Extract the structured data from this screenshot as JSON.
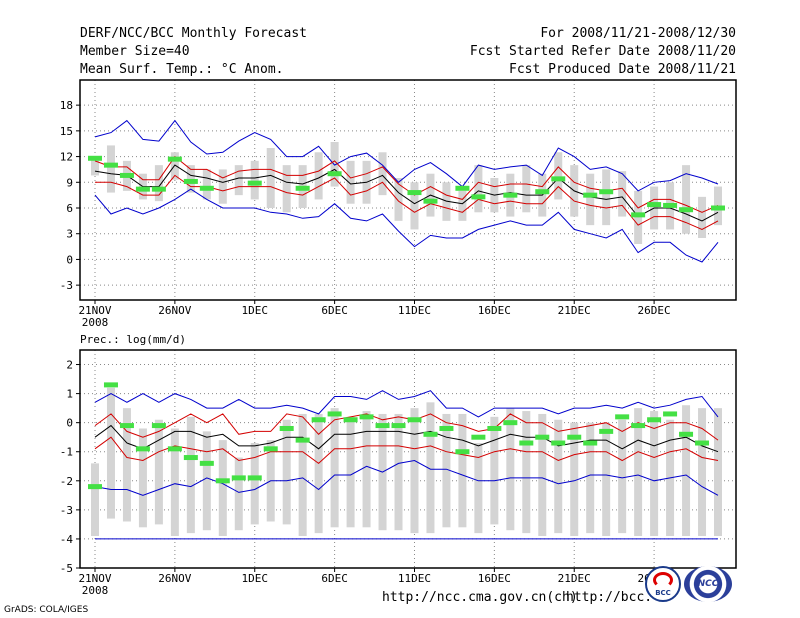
{
  "header": {
    "title": "DERF/NCC/BCC Monthly Forecast",
    "member_size": "Member Size=40",
    "variable": "Mean Surf. Temp.: °C Anom.",
    "period": "For 2008/11/21-2008/12/30",
    "started": "Fcst Started Refer Date 2008/11/20",
    "produced": "Fcst Produced Date 2008/11/21"
  },
  "footer": {
    "url1": "http://ncc.cma.gov.cn(ch)",
    "url2": "http://bcc.",
    "credit": "GrADS: COLA/IGES",
    "logo1": "BCC",
    "logo2": "NCC"
  },
  "colors": {
    "envelope": "#0000cc",
    "spread": "#d40000",
    "mean": "#000000",
    "box": "#d4d4d4",
    "obs": "#44e044",
    "dashed": "#0000cc"
  },
  "chart_data": [
    {
      "type": "line",
      "title": "Mean Surf. Temp.: °C Anom.",
      "ylim": [
        -4.5,
        20
      ],
      "yticks": [
        -3,
        0,
        3,
        6,
        9,
        12,
        15,
        18
      ],
      "x_tick_labels": [
        "21NOV",
        "26NOV",
        "1DEC",
        "6DEC",
        "11DEC",
        "16DEC",
        "21DEC",
        "26DEC"
      ],
      "x_sub_label": "2008",
      "x_tick_positions": [
        0,
        5,
        10,
        15,
        20,
        25,
        30,
        35
      ],
      "grid": true,
      "series": [
        {
          "name": "max",
          "values": [
            14.3,
            14.8,
            16.2,
            14.0,
            13.8,
            16.2,
            13.7,
            12.3,
            12.5,
            13.8,
            14.8,
            14.0,
            12.0,
            12.0,
            13.2,
            11.0,
            12.0,
            12.4,
            11.0,
            9.0,
            10.5,
            11.3,
            10.0,
            8.5,
            11.0,
            10.5,
            10.8,
            11.0,
            9.8,
            13.0,
            12.0,
            10.5,
            10.8,
            10.0,
            8.0,
            9.0,
            9.2,
            10.0,
            9.5,
            8.8
          ]
        },
        {
          "name": "upper",
          "values": [
            11.5,
            10.8,
            10.8,
            9.3,
            9.3,
            12.0,
            10.5,
            10.5,
            9.5,
            10.3,
            10.5,
            10.5,
            9.8,
            9.8,
            10.3,
            11.5,
            9.5,
            10.0,
            10.8,
            8.8,
            7.5,
            8.5,
            7.5,
            7.0,
            9.0,
            8.5,
            8.8,
            8.8,
            8.5,
            10.8,
            9.0,
            8.3,
            8.0,
            8.3,
            6.0,
            7.0,
            7.0,
            6.3,
            5.5,
            6.3
          ]
        },
        {
          "name": "mean",
          "values": [
            10.3,
            10.0,
            9.8,
            8.5,
            8.5,
            11.0,
            9.8,
            9.5,
            9.0,
            9.5,
            9.5,
            9.8,
            9.0,
            8.8,
            9.5,
            10.5,
            8.8,
            9.0,
            9.8,
            7.8,
            6.5,
            7.5,
            6.8,
            6.5,
            8.0,
            7.5,
            7.8,
            7.5,
            7.5,
            9.5,
            8.0,
            7.3,
            7.0,
            7.3,
            5.0,
            6.0,
            6.0,
            5.3,
            4.5,
            5.5
          ]
        },
        {
          "name": "lower",
          "values": [
            9.0,
            9.0,
            8.5,
            7.5,
            7.5,
            9.8,
            8.5,
            8.5,
            8.0,
            8.5,
            8.5,
            8.5,
            7.8,
            7.5,
            8.5,
            9.5,
            7.5,
            8.0,
            9.0,
            6.8,
            5.5,
            6.5,
            6.0,
            5.5,
            7.0,
            6.5,
            6.8,
            6.5,
            6.5,
            8.5,
            6.8,
            6.3,
            6.0,
            6.3,
            4.0,
            5.0,
            5.0,
            4.3,
            3.5,
            4.5
          ]
        },
        {
          "name": "min",
          "values": [
            7.5,
            5.3,
            6.0,
            5.3,
            6.0,
            7.0,
            8.2,
            7.0,
            6.0,
            6.0,
            6.0,
            5.5,
            5.3,
            4.8,
            5.0,
            6.5,
            4.8,
            4.5,
            5.3,
            3.3,
            1.5,
            2.8,
            2.5,
            2.5,
            3.5,
            4.0,
            4.5,
            4.0,
            4.0,
            5.5,
            3.5,
            3.0,
            2.5,
            3.5,
            0.8,
            2.0,
            2.0,
            0.5,
            -0.3,
            2.0
          ]
        },
        {
          "name": "box_top",
          "values": [
            12.0,
            13.3,
            11.5,
            10.0,
            11.0,
            12.5,
            11.0,
            10.5,
            10.5,
            11.0,
            11.5,
            13.0,
            11.0,
            11.0,
            12.5,
            13.7,
            11.5,
            11.5,
            12.5,
            9.5,
            9.0,
            10.0,
            9.0,
            8.0,
            11.0,
            9.5,
            10.0,
            11.0,
            10.0,
            12.5,
            11.0,
            10.0,
            10.5,
            10.3,
            8.0,
            8.5,
            9.0,
            11.0,
            7.3,
            8.5
          ]
        },
        {
          "name": "box_bottom",
          "values": [
            9.8,
            7.8,
            8.0,
            7.0,
            6.8,
            9.3,
            7.8,
            7.0,
            6.5,
            7.5,
            7.0,
            6.0,
            5.5,
            6.0,
            7.0,
            8.5,
            6.5,
            6.5,
            7.5,
            4.5,
            3.5,
            5.0,
            4.5,
            4.5,
            5.5,
            5.5,
            5.0,
            5.5,
            5.0,
            7.0,
            5.0,
            4.0,
            4.0,
            5.0,
            1.8,
            3.5,
            3.5,
            3.0,
            2.5,
            4.0
          ]
        },
        {
          "name": "observed",
          "values": [
            11.8,
            11.0,
            9.8,
            8.2,
            8.2,
            11.7,
            9.1,
            8.3,
            null,
            null,
            8.9,
            null,
            null,
            8.3,
            null,
            10.0,
            null,
            null,
            null,
            null,
            7.8,
            6.8,
            null,
            8.3,
            7.3,
            null,
            7.5,
            null,
            7.9,
            9.4,
            null,
            7.5,
            7.9,
            null,
            5.2,
            6.4,
            6.3,
            5.8,
            null,
            6.0
          ]
        }
      ]
    },
    {
      "type": "line",
      "title": "Prec.: log(mm/d)",
      "ylim": [
        -5,
        2.5
      ],
      "yticks": [
        -5,
        -4,
        -3,
        -2,
        -1,
        0,
        1,
        2
      ],
      "x_tick_labels": [
        "21NOV",
        "26NOV",
        "1DEC",
        "6DEC",
        "11DEC",
        "16DEC",
        "21DEC",
        "26DEC"
      ],
      "x_sub_label": "2008",
      "x_tick_positions": [
        0,
        5,
        10,
        15,
        20,
        25,
        30,
        35
      ],
      "grid": true,
      "reference_line": -4,
      "series": [
        {
          "name": "max",
          "values": [
            0.7,
            1.0,
            0.7,
            1.0,
            0.7,
            1.0,
            0.8,
            0.5,
            0.5,
            0.8,
            0.5,
            0.5,
            0.6,
            0.5,
            0.3,
            0.9,
            0.9,
            0.8,
            1.1,
            0.8,
            0.9,
            1.1,
            0.5,
            0.5,
            0.2,
            0.5,
            0.5,
            0.5,
            0.5,
            0.3,
            0.5,
            0.5,
            0.6,
            0.5,
            0.7,
            0.5,
            0.6,
            0.8,
            0.9,
            0.2
          ]
        },
        {
          "name": "upper",
          "values": [
            -0.1,
            0.3,
            -0.3,
            -0.5,
            -0.3,
            0.0,
            0.3,
            0.0,
            0.3,
            -0.4,
            -0.3,
            -0.3,
            0.3,
            0.2,
            -0.4,
            0.1,
            0.2,
            0.3,
            0.1,
            0.2,
            0.1,
            0.3,
            0.0,
            -0.1,
            -0.3,
            -0.2,
            0.3,
            0.0,
            0.0,
            -0.3,
            -0.2,
            -0.1,
            0.0,
            -0.3,
            0.0,
            -0.2,
            0.0,
            0.0,
            -0.2,
            -0.6
          ]
        },
        {
          "name": "mean",
          "values": [
            -0.5,
            -0.1,
            -0.7,
            -0.9,
            -0.6,
            -0.3,
            -0.3,
            -0.5,
            -0.4,
            -0.8,
            -0.8,
            -0.7,
            -0.5,
            -0.5,
            -0.9,
            -0.4,
            -0.4,
            -0.3,
            -0.3,
            -0.3,
            -0.4,
            -0.3,
            -0.5,
            -0.6,
            -0.8,
            -0.6,
            -0.4,
            -0.5,
            -0.5,
            -0.8,
            -0.7,
            -0.6,
            -0.6,
            -0.9,
            -0.6,
            -0.8,
            -0.6,
            -0.5,
            -0.8,
            -1.0
          ]
        },
        {
          "name": "lower",
          "values": [
            -0.9,
            -0.5,
            -1.2,
            -1.3,
            -1.0,
            -0.8,
            -0.9,
            -1.0,
            -0.9,
            -1.3,
            -1.2,
            -1.0,
            -1.0,
            -1.0,
            -1.4,
            -0.9,
            -0.9,
            -0.8,
            -0.8,
            -0.8,
            -0.9,
            -0.8,
            -1.0,
            -1.1,
            -1.2,
            -1.0,
            -0.9,
            -1.0,
            -1.0,
            -1.3,
            -1.1,
            -1.0,
            -1.0,
            -1.3,
            -1.0,
            -1.2,
            -1.0,
            -0.9,
            -1.2,
            -1.3
          ]
        },
        {
          "name": "min",
          "values": [
            -2.2,
            -2.3,
            -2.3,
            -2.5,
            -2.3,
            -2.1,
            -2.2,
            -1.9,
            -2.1,
            -2.4,
            -2.3,
            -2.0,
            -2.0,
            -1.9,
            -2.3,
            -1.8,
            -1.8,
            -1.5,
            -1.7,
            -1.4,
            -1.3,
            -1.6,
            -1.6,
            -1.8,
            -2.0,
            -2.0,
            -1.9,
            -1.9,
            -1.9,
            -2.1,
            -2.0,
            -1.8,
            -1.8,
            -1.9,
            -1.8,
            -2.0,
            -1.9,
            -1.8,
            -2.2,
            -2.5
          ]
        },
        {
          "name": "box_top",
          "values": [
            -1.4,
            1.2,
            0.5,
            -0.2,
            0.1,
            -0.2,
            0.2,
            -0.3,
            -0.6,
            -1.2,
            -0.7,
            -0.6,
            0.1,
            0.3,
            0.3,
            0.5,
            0.2,
            0.4,
            0.3,
            0.3,
            0.5,
            0.7,
            0.3,
            0.3,
            -0.7,
            0.2,
            0.5,
            0.4,
            0.3,
            0.1,
            0.0,
            0.0,
            0.0,
            0.1,
            0.5,
            0.4,
            0.1,
            0.6,
            0.5,
            0.5
          ]
        },
        {
          "name": "box_bottom",
          "values": [
            -3.9,
            -3.3,
            -3.4,
            -3.6,
            -3.5,
            -3.9,
            -3.8,
            -3.7,
            -3.9,
            -3.7,
            -3.5,
            -3.4,
            -3.5,
            -3.9,
            -3.8,
            -3.6,
            -3.6,
            -3.6,
            -3.7,
            -3.7,
            -3.8,
            -3.8,
            -3.6,
            -3.6,
            -3.8,
            -3.5,
            -3.7,
            -3.8,
            -3.9,
            -3.8,
            -3.9,
            -3.8,
            -3.9,
            -3.8,
            -3.9,
            -3.9,
            -3.9,
            -3.9,
            -3.9,
            -3.9
          ]
        },
        {
          "name": "observed",
          "values": [
            -2.2,
            1.3,
            -0.1,
            -0.9,
            -0.1,
            -0.9,
            -1.2,
            -1.4,
            -2.0,
            -1.9,
            -1.9,
            -0.9,
            -0.2,
            -0.6,
            0.1,
            0.3,
            0.1,
            0.2,
            -0.1,
            -0.1,
            0.1,
            -0.4,
            -0.2,
            -1.0,
            -0.5,
            -0.2,
            0.0,
            -0.7,
            -0.5,
            -0.7,
            -0.5,
            -0.7,
            -0.3,
            0.2,
            -0.1,
            0.1,
            0.3,
            -0.4,
            -0.7,
            null
          ]
        }
      ]
    }
  ]
}
